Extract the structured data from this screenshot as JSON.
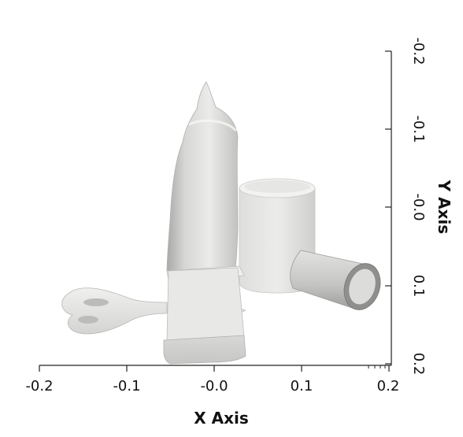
{
  "axes": {
    "x": {
      "title": "X Axis",
      "ticks": [
        "-0.2",
        "-0.1",
        "-0.0",
        "0.1",
        "0.2"
      ]
    },
    "y": {
      "title": "Y Axis",
      "ticks": [
        "-0.2",
        "-0.1",
        "-0.0",
        "0.1",
        "0.2"
      ]
    }
  },
  "objects": [
    "tall-bottle",
    "cylinder-can",
    "tipped-cylinder",
    "box",
    "scissors"
  ],
  "colors": {
    "background": "#ffffff",
    "object_light": "#ececea",
    "object_mid": "#d2d2d0",
    "object_dark": "#a8a8a6",
    "axis": "#222222"
  }
}
